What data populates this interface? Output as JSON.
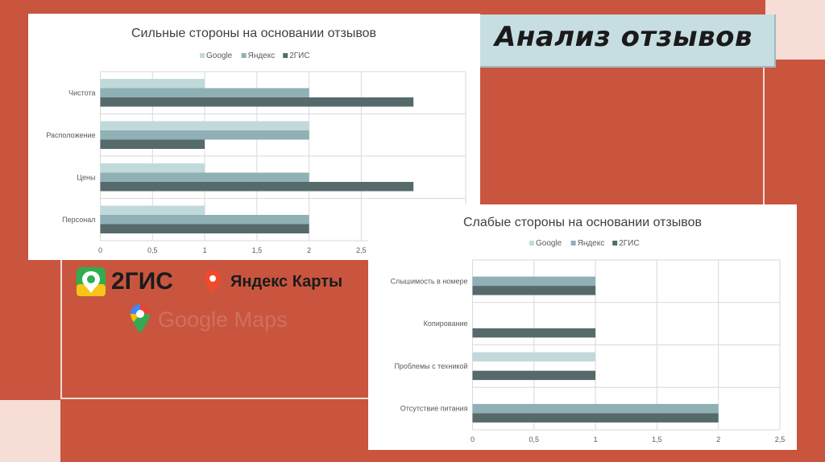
{
  "slide": {
    "title": "Анализ отзывов"
  },
  "logos": {
    "twogis": "2ГИС",
    "yandex": "Яндекс Карты",
    "google": "Google Maps"
  },
  "colors": {
    "background": "#c9553f",
    "google": "#c2d9dc",
    "yandex": "#8fb0b4",
    "twogis": "#566a6b"
  },
  "chart_data": [
    {
      "type": "bar",
      "orientation": "horizontal",
      "title": "Сильные стороны на основании отзывов",
      "categories": [
        "Чистота",
        "Расположение",
        "Цены",
        "Персонал"
      ],
      "series": [
        {
          "name": "Google",
          "values": [
            1,
            2,
            1,
            1
          ]
        },
        {
          "name": "Яндекс",
          "values": [
            2,
            2,
            2,
            2
          ]
        },
        {
          "name": "2ГИС",
          "values": [
            3,
            1,
            3,
            2
          ]
        }
      ],
      "xticks": [
        "0",
        "0,5",
        "1",
        "1,5",
        "2",
        "2,5"
      ],
      "xlim": [
        0,
        3.5
      ],
      "grid": true,
      "legend": "top"
    },
    {
      "type": "bar",
      "orientation": "horizontal",
      "title": "Слабые стороны на основании отзывов",
      "categories": [
        "Слышимость в номере",
        "Копирование",
        "Проблемы с техникой",
        "Отсутствие питания"
      ],
      "series": [
        {
          "name": "Google",
          "values": [
            0,
            0,
            1,
            0
          ]
        },
        {
          "name": "Яндекс",
          "values": [
            1,
            0,
            0,
            2
          ]
        },
        {
          "name": "2ГИС",
          "values": [
            1,
            1,
            1,
            2
          ]
        }
      ],
      "xticks": [
        "0",
        "0,5",
        "1",
        "1,5",
        "2",
        "2,5"
      ],
      "xlim": [
        0,
        2.5
      ],
      "grid": true,
      "legend": "top"
    }
  ]
}
